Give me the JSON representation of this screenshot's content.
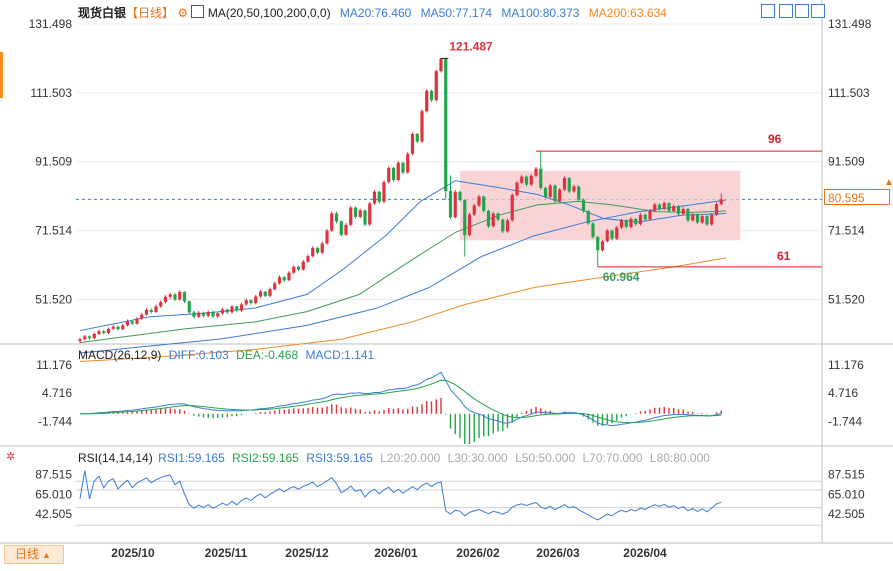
{
  "header": {
    "instrument": "现货白银",
    "period": "【日线】",
    "ma_label": "MA(20,50,100,200,0,0)",
    "ma20": "MA20:76.460",
    "ma50": "MA50:77.174",
    "ma100": "MA100:80.373",
    "ma200": "MA200:63.634"
  },
  "macd_header": {
    "name": "MACD(26,12,9)",
    "diff": "DIFF:0.103",
    "dea": "DEA:-0.468",
    "macd": "MACD:1.141"
  },
  "rsi_header": {
    "name": "RSI(14,14,14)",
    "rsi1": "RSI1:59.165",
    "rsi2": "RSI2:59.165",
    "rsi3": "RSI3:59.165",
    "l20": "L20:20.000",
    "l30": "L30:30.000",
    "l50": "L50:50.000",
    "l70": "L70:70.000",
    "l80": "L80:80.000"
  },
  "price_axis": [
    "131.498",
    "111.503",
    "91.509",
    "71.514",
    "51.520"
  ],
  "macd_axis": [
    "11.176",
    "4.716",
    "-1.744"
  ],
  "rsi_axis": [
    "87.515",
    "65.010",
    "42.505"
  ],
  "current_price": "80.595",
  "annotations": {
    "high": "121.487",
    "low": "60.964",
    "upper": "96",
    "lower": "61"
  },
  "x_axis": [
    "2025/10",
    "2025/11",
    "2025/12",
    "2026/01",
    "2026/02",
    "2026/03",
    "2026/04"
  ],
  "bottom_tab": "日线",
  "colors": {
    "up": "#e0323c",
    "down": "#21a44a",
    "ma20": "#3a7bd5",
    "ma50": "#3c9b5a",
    "ma100": "#3a7bd5",
    "ma200": "#f08a24",
    "box": "#f7c5c9"
  },
  "chart_data": {
    "type": "candlestick",
    "title": "现货白银 日线",
    "ylim": [
      41.5,
      133
    ],
    "ma_lines": {
      "ma20": [
        [
          0,
          42.5
        ],
        [
          20,
          44.5
        ],
        [
          40,
          46.5
        ],
        [
          70,
          47.5
        ],
        [
          100,
          49
        ],
        [
          130,
          53
        ],
        [
          150,
          60
        ],
        [
          175,
          70
        ],
        [
          195,
          80
        ],
        [
          215,
          86
        ],
        [
          240,
          84
        ],
        [
          262,
          82
        ],
        [
          280,
          79
        ],
        [
          300,
          75
        ],
        [
          320,
          74
        ],
        [
          345,
          76
        ],
        [
          370,
          76.5
        ]
      ],
      "ma50": [
        [
          0,
          39
        ],
        [
          30,
          41
        ],
        [
          60,
          43
        ],
        [
          100,
          45
        ],
        [
          130,
          48
        ],
        [
          160,
          53
        ],
        [
          190,
          63
        ],
        [
          215,
          71
        ],
        [
          240,
          76
        ],
        [
          262,
          79
        ],
        [
          285,
          80
        ],
        [
          305,
          79
        ],
        [
          330,
          77
        ],
        [
          350,
          76.8
        ],
        [
          370,
          77.2
        ]
      ],
      "ma100": [
        [
          0,
          36
        ],
        [
          40,
          38
        ],
        [
          80,
          40
        ],
        [
          130,
          44
        ],
        [
          170,
          49
        ],
        [
          200,
          55
        ],
        [
          230,
          64
        ],
        [
          260,
          70
        ],
        [
          290,
          74
        ],
        [
          320,
          77
        ],
        [
          350,
          79
        ],
        [
          370,
          80.4
        ]
      ],
      "ma200": [
        [
          0,
          33.5
        ],
        [
          50,
          35
        ],
        [
          100,
          37
        ],
        [
          150,
          40
        ],
        [
          190,
          45
        ],
        [
          220,
          50
        ],
        [
          260,
          55
        ],
        [
          300,
          58
        ],
        [
          340,
          61
        ],
        [
          370,
          63.6
        ]
      ]
    },
    "candles": [
      [
        0,
        39.5,
        40,
        38.8,
        40.4
      ],
      [
        1,
        40,
        40.8,
        39.6,
        41.2
      ],
      [
        2,
        40.8,
        40.3,
        39.8,
        41.1
      ],
      [
        3,
        40.3,
        41.5,
        40,
        41.9
      ],
      [
        4,
        41.5,
        42.3,
        41.2,
        42.8
      ],
      [
        5,
        42.3,
        41.8,
        41.4,
        42.7
      ],
      [
        6,
        41.8,
        43,
        41.5,
        43.4
      ],
      [
        7,
        43,
        43.6,
        42.6,
        44.1
      ],
      [
        8,
        43.6,
        42.9,
        42.5,
        43.9
      ],
      [
        9,
        42.9,
        44,
        42.6,
        44.5
      ],
      [
        10,
        44,
        45.2,
        43.7,
        45.7
      ],
      [
        11,
        45.2,
        44.5,
        44.1,
        45.6
      ],
      [
        12,
        44.5,
        46,
        44.2,
        46.4
      ],
      [
        13,
        46,
        47.1,
        45.6,
        47.6
      ],
      [
        14,
        47.1,
        48.5,
        46.8,
        49
      ],
      [
        15,
        48.5,
        47.9,
        47.4,
        48.9
      ],
      [
        16,
        47.9,
        49.5,
        47.6,
        50
      ],
      [
        17,
        49.5,
        50.8,
        49.1,
        51.3
      ],
      [
        18,
        50.8,
        52.3,
        50.4,
        52.8
      ],
      [
        19,
        52.3,
        53,
        51.6,
        53.5
      ],
      [
        20,
        53,
        51.5,
        51,
        53.4
      ],
      [
        21,
        51.5,
        53.7,
        51.2,
        54.2
      ],
      [
        22,
        53.7,
        51,
        50.5,
        53.9
      ],
      [
        23,
        51,
        47.8,
        47.2,
        51.3
      ],
      [
        24,
        47.8,
        46.5,
        46,
        48.3
      ],
      [
        25,
        46.5,
        47.7,
        46.1,
        48.2
      ],
      [
        26,
        47.7,
        46.8,
        46.3,
        48
      ],
      [
        27,
        46.8,
        47.9,
        46.4,
        48.3
      ],
      [
        28,
        47.9,
        46.6,
        46.1,
        48.2
      ],
      [
        29,
        46.6,
        47.5,
        46.2,
        47.9
      ],
      [
        30,
        47.5,
        48.6,
        47.1,
        49.1
      ],
      [
        31,
        48.6,
        47.8,
        47.3,
        48.9
      ],
      [
        32,
        47.8,
        49.5,
        47.4,
        49.9
      ],
      [
        33,
        49.5,
        48.3,
        47.8,
        49.7
      ],
      [
        34,
        48.3,
        50.1,
        47.9,
        50.6
      ],
      [
        35,
        50.1,
        51.3,
        49.7,
        51.8
      ],
      [
        36,
        51.3,
        50.5,
        50,
        51.6
      ],
      [
        37,
        50.5,
        52.4,
        50.1,
        52.9
      ],
      [
        38,
        52.4,
        53.8,
        52,
        54.3
      ],
      [
        39,
        53.8,
        52.6,
        52.1,
        54
      ],
      [
        40,
        52.6,
        54.5,
        52.2,
        55
      ],
      [
        41,
        54.5,
        56.2,
        54.1,
        56.7
      ],
      [
        42,
        56.2,
        58,
        55.8,
        58.5
      ],
      [
        43,
        58,
        57.1,
        56.6,
        58.3
      ],
      [
        44,
        57.1,
        59.3,
        56.8,
        59.8
      ],
      [
        45,
        59.3,
        61,
        58.9,
        61.5
      ],
      [
        46,
        61,
        60.2,
        59.7,
        61.3
      ],
      [
        47,
        60.2,
        62.5,
        59.9,
        63
      ],
      [
        48,
        62.5,
        64.1,
        62.1,
        64.6
      ],
      [
        49,
        64.1,
        66.5,
        63.7,
        67
      ],
      [
        50,
        66.5,
        65.1,
        64.6,
        66.8
      ],
      [
        51,
        65.1,
        67.8,
        64.7,
        68.4
      ],
      [
        52,
        67.8,
        71.5,
        67.4,
        72
      ],
      [
        53,
        71.5,
        76.5,
        71.1,
        77
      ],
      [
        54,
        76.5,
        74.2,
        73.6,
        77
      ],
      [
        55,
        74.2,
        70.3,
        69.8,
        74.5
      ],
      [
        56,
        70.3,
        73.2,
        70,
        73.7
      ],
      [
        57,
        73.2,
        78.2,
        72.8,
        78.7
      ],
      [
        58,
        78.2,
        75.5,
        75,
        78.5
      ],
      [
        59,
        75.5,
        77.4,
        75.1,
        77.9
      ],
      [
        60,
        77.4,
        73.3,
        72.8,
        77.6
      ],
      [
        61,
        73.3,
        79.4,
        72.9,
        79.9
      ],
      [
        62,
        79.4,
        82.8,
        79,
        83.3
      ],
      [
        63,
        82.8,
        79.9,
        79.4,
        83.1
      ],
      [
        64,
        79.9,
        85.6,
        79.5,
        86.1
      ],
      [
        65,
        85.6,
        89.7,
        85.2,
        90.2
      ],
      [
        66,
        89.7,
        86.2,
        85.7,
        90
      ],
      [
        67,
        86.2,
        91.2,
        85.8,
        91.7
      ],
      [
        68,
        91.2,
        88.4,
        87.9,
        91.5
      ],
      [
        69,
        88.4,
        93.8,
        88,
        94.3
      ],
      [
        70,
        93.8,
        99.6,
        93.4,
        100.1
      ],
      [
        71,
        99.6,
        97.4,
        96.9,
        99.9
      ],
      [
        72,
        97.4,
        106.2,
        97,
        106.7
      ],
      [
        73,
        106.2,
        112.1,
        105.8,
        112.6
      ],
      [
        74,
        112.1,
        109.4,
        108.9,
        112.4
      ],
      [
        75,
        109.4,
        117.8,
        109,
        118.3
      ],
      [
        76,
        117.8,
        121.3,
        117.4,
        121.5
      ],
      [
        77,
        121.3,
        83,
        80.5,
        121.8
      ],
      [
        78,
        83,
        75.4,
        74.9,
        87.5
      ],
      [
        79,
        75.4,
        82.8,
        75,
        83.3
      ],
      [
        80,
        82.8,
        80.4,
        79.9,
        83.1
      ],
      [
        81,
        80.4,
        70.2,
        64,
        80.7
      ],
      [
        82,
        70.2,
        76.2,
        69.8,
        76.7
      ],
      [
        83,
        76.2,
        78.8,
        75.8,
        79.3
      ],
      [
        84,
        78.8,
        81.4,
        78.4,
        81.9
      ],
      [
        85,
        81.4,
        77.3,
        76.8,
        81.7
      ],
      [
        86,
        77.3,
        72.8,
        72.3,
        77.6
      ],
      [
        87,
        72.8,
        76.5,
        72.4,
        77
      ],
      [
        88,
        76.5,
        74.7,
        74.2,
        76.8
      ],
      [
        89,
        74.7,
        71.3,
        70.8,
        75
      ],
      [
        90,
        71.3,
        74.5,
        70.9,
        75
      ],
      [
        91,
        74.5,
        81.8,
        74.1,
        82.3
      ],
      [
        92,
        81.8,
        85.4,
        81.4,
        85.9
      ],
      [
        93,
        85.4,
        87.2,
        85,
        87.7
      ],
      [
        94,
        87.2,
        84.9,
        84.4,
        87.5
      ],
      [
        95,
        84.9,
        87.4,
        84.5,
        87.9
      ],
      [
        96,
        87.4,
        89.5,
        87,
        90
      ],
      [
        97,
        89.5,
        83.9,
        83.4,
        94.6
      ],
      [
        98,
        83.9,
        81.3,
        80.8,
        84.2
      ],
      [
        99,
        81.3,
        84.6,
        80.9,
        85.1
      ],
      [
        100,
        84.6,
        80.1,
        79.6,
        84.9
      ],
      [
        101,
        80.1,
        83.4,
        79.7,
        83.9
      ],
      [
        102,
        83.4,
        86.8,
        83,
        87.3
      ],
      [
        103,
        86.8,
        82.9,
        82.4,
        87.1
      ],
      [
        104,
        82.9,
        84.3,
        82.5,
        84.8
      ],
      [
        105,
        84.3,
        80.5,
        80,
        84.6
      ],
      [
        106,
        80.5,
        77.2,
        76.7,
        80.8
      ],
      [
        107,
        77.2,
        73.6,
        73.1,
        77.5
      ],
      [
        108,
        73.6,
        69.7,
        69.2,
        73.9
      ],
      [
        109,
        69.7,
        65.8,
        61,
        70
      ],
      [
        110,
        65.8,
        68.4,
        65.4,
        68.9
      ],
      [
        111,
        68.4,
        71.5,
        68,
        72
      ],
      [
        112,
        71.5,
        69.2,
        68.7,
        71.8
      ],
      [
        113,
        69.2,
        72.4,
        68.8,
        72.9
      ],
      [
        114,
        72.4,
        74.5,
        72,
        75
      ],
      [
        115,
        74.5,
        72.6,
        72.1,
        74.8
      ],
      [
        116,
        72.6,
        74.9,
        72.2,
        75.4
      ],
      [
        117,
        74.9,
        73.4,
        72.9,
        75.2
      ],
      [
        118,
        73.4,
        76.1,
        73,
        76.6
      ],
      [
        119,
        76.1,
        74.8,
        74.3,
        76.4
      ],
      [
        120,
        74.8,
        77.3,
        74.4,
        77.8
      ],
      [
        121,
        77.3,
        79.1,
        76.9,
        79.6
      ],
      [
        122,
        79.1,
        77.8,
        77.3,
        79.4
      ],
      [
        123,
        77.8,
        79.5,
        77.4,
        80
      ],
      [
        124,
        79.5,
        77.2,
        76.7,
        79.8
      ],
      [
        125,
        77.2,
        78.6,
        76.8,
        79.1
      ],
      [
        126,
        78.6,
        76.4,
        75.9,
        78.9
      ],
      [
        127,
        76.4,
        77.8,
        76,
        78.3
      ],
      [
        128,
        77.8,
        74.5,
        74,
        78.1
      ],
      [
        129,
        74.5,
        76.2,
        74.1,
        76.7
      ],
      [
        130,
        76.2,
        73.9,
        73.4,
        76.5
      ],
      [
        131,
        73.9,
        75.7,
        73.5,
        76.2
      ],
      [
        132,
        75.7,
        73.3,
        72.8,
        76
      ],
      [
        133,
        73.3,
        76.1,
        72.9,
        76.6
      ],
      [
        134,
        76.1,
        79.2,
        75.7,
        79.7
      ],
      [
        135,
        79.2,
        80.6,
        78.8,
        82.3
      ]
    ],
    "macd": {
      "diff_range": [
        -6,
        11
      ],
      "bars_sign_sequence": "pos-pre-jan, neg-feb, pos-mar, neg-mar-late, pos-apr"
    },
    "rsi": {
      "ylim": [
        20,
        95
      ]
    }
  }
}
